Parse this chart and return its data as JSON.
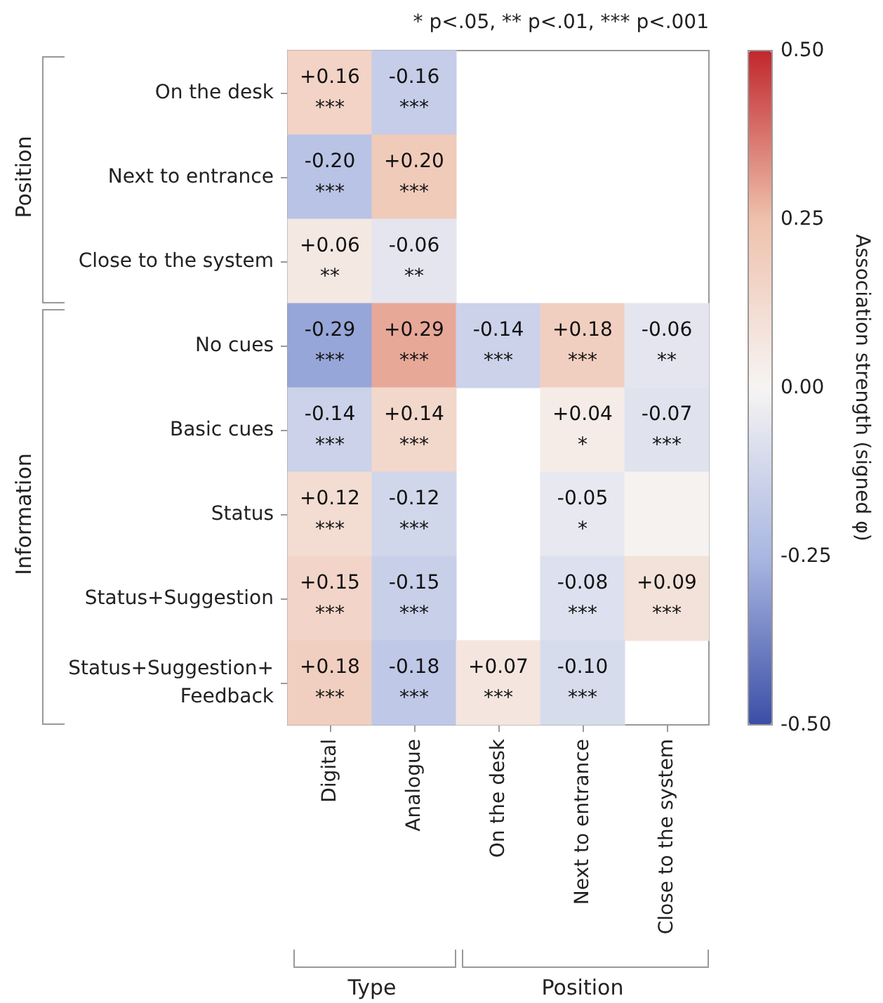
{
  "chart_data": {
    "type": "heatmap",
    "categories": [
      "Digital",
      "Analogue",
      "On the desk",
      "Next to entrance",
      "Close to the system"
    ],
    "y_categories": [
      "On the desk",
      "Next to entrance",
      "Close to the system",
      "No cues",
      "Basic cues",
      "Status",
      "Status+Suggestion",
      "Status+Suggestion+ Feedback"
    ],
    "cells": [
      [
        0.16,
        -0.16,
        null,
        null,
        null
      ],
      [
        -0.2,
        0.2,
        null,
        null,
        null
      ],
      [
        0.06,
        -0.06,
        null,
        null,
        null
      ],
      [
        -0.29,
        0.29,
        -0.14,
        0.18,
        -0.06
      ],
      [
        -0.14,
        0.14,
        null,
        0.04,
        -0.07
      ],
      [
        0.12,
        -0.12,
        null,
        -0.05,
        0.01
      ],
      [
        0.15,
        -0.15,
        null,
        -0.08,
        0.09
      ],
      [
        0.18,
        -0.18,
        0.07,
        -0.1,
        null
      ]
    ],
    "cell_labels": [
      [
        "+0.16\n***",
        "-0.16\n***",
        null,
        null,
        null
      ],
      [
        "-0.20\n***",
        "+0.20\n***",
        null,
        null,
        null
      ],
      [
        "+0.06\n**",
        "-0.06\n**",
        null,
        null,
        null
      ],
      [
        "-0.29\n***",
        "+0.29\n***",
        "-0.14\n***",
        "+0.18\n***",
        "-0.06\n**"
      ],
      [
        "-0.14\n***",
        "+0.14\n***",
        null,
        "+0.04\n*",
        "-0.07\n***"
      ],
      [
        "+0.12\n***",
        "-0.12\n***",
        null,
        "-0.05\n*",
        null
      ],
      [
        "+0.15\n***",
        "-0.15\n***",
        null,
        "-0.08\n***",
        "+0.09\n***"
      ],
      [
        "+0.18\n***",
        "-0.18\n***",
        "+0.07\n***",
        "-0.10\n***",
        null
      ]
    ],
    "clim": [
      -0.5,
      0.5
    ],
    "cticks": [
      {
        "value": 0.5,
        "label": "0.50"
      },
      {
        "value": 0.25,
        "label": "0.25"
      },
      {
        "value": 0,
        "label": "0.00"
      },
      {
        "value": -0.25,
        "label": "-0.25"
      },
      {
        "value": -0.5,
        "label": "-0.50"
      }
    ],
    "clabel": "Association strength (signed φ)",
    "annotations": [
      "* p<.05, ** p<.01, *** p<.001",
      "Position",
      "Information",
      "Type",
      "Position"
    ]
  }
}
